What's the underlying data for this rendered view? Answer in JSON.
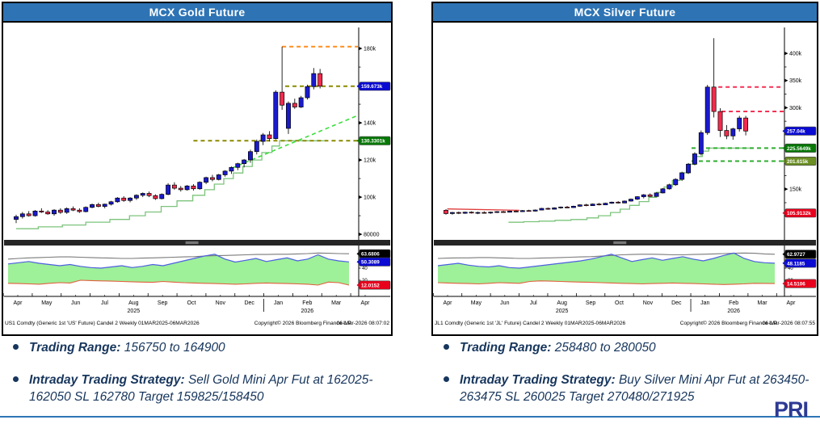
{
  "page": {
    "bullets": [
      {
        "label": "Trading Range:",
        "text": " 156750 to 164900"
      },
      {
        "label": "Intraday Trading Strategy:",
        "text": " Sell Gold Mini Apr Fut at 162025-162050 SL 162780 Target 159825/158450"
      },
      {
        "label": "Trading Range:",
        "text": " 258480 to 280050"
      },
      {
        "label": "Intraday Trading Strategy:",
        "text": " Buy Silver Mini Apr Fut at 263450-263475 SL 260025 Target 270480/271925"
      }
    ],
    "logo_text": "PRI",
    "divider_color": "#2e75b6",
    "bullet_text_color": "#17365d"
  },
  "colors": {
    "title_bg": "#2e74b5",
    "title_fg": "#ffffff",
    "up": "#1a1acd",
    "down": "#f42a4d",
    "wick": "#111111",
    "trail": "#7cc47c",
    "axis": "#000000",
    "ind_gray": "#7a7a7a",
    "ind_blue": "#4d5fe0",
    "ind_red": "#e2603f",
    "ind_fill": "#93ee8e",
    "separator": "#262626"
  },
  "chart_data": [
    {
      "type": "candlestick",
      "title": "MCX Gold Future",
      "y_unit": "thousands",
      "ylim": [
        78.3,
        183.5
      ],
      "ticks": [
        {
          "v": 180,
          "label": "180k"
        },
        {
          "v": 140,
          "label": "140k"
        },
        {
          "v": 120,
          "label": "120k"
        },
        {
          "v": 100,
          "label": "100k"
        },
        {
          "v": 80,
          "label": "80000"
        }
      ],
      "minor_ticks": [
        90,
        110,
        130,
        150,
        160,
        170
      ],
      "badges": [
        {
          "v": 159.673,
          "label": "159.673k",
          "bg": "#0a0ad2"
        },
        {
          "v": 130.3301,
          "label": "130.3301k",
          "bg": "#067806"
        }
      ],
      "candles": [
        [
          88,
          90.5,
          86,
          89.5
        ],
        [
          89.5,
          92,
          88.5,
          91
        ],
        [
          91,
          92.5,
          89.5,
          90
        ],
        [
          90,
          93,
          89.5,
          92.5
        ],
        [
          92.5,
          94,
          91.5,
          92
        ],
        [
          92,
          93,
          90.5,
          91
        ],
        [
          91,
          93.5,
          90,
          93
        ],
        [
          93,
          94,
          91,
          91.8
        ],
        [
          91.8,
          94.5,
          91,
          93.8
        ],
        [
          93.8,
          95,
          92.5,
          93
        ],
        [
          93,
          94,
          91.5,
          92.2
        ],
        [
          92.2,
          95,
          91.8,
          94.5
        ],
        [
          94.5,
          96.5,
          94,
          96
        ],
        [
          96,
          97,
          94.5,
          95
        ],
        [
          95,
          96.5,
          94,
          96.2
        ],
        [
          96.2,
          98,
          95.5,
          97.5
        ],
        [
          97.5,
          100,
          97,
          99.5
        ],
        [
          99.5,
          100.5,
          97.5,
          98.2
        ],
        [
          98.2,
          100,
          97.2,
          99.5
        ],
        [
          99.5,
          101.5,
          98.5,
          101
        ],
        [
          101,
          102.5,
          100,
          102
        ],
        [
          102,
          103,
          100,
          100.8
        ],
        [
          100.8,
          101.5,
          98.5,
          99.2
        ],
        [
          99.2,
          102,
          98.8,
          101.5
        ],
        [
          101.5,
          107.5,
          101,
          106.5
        ],
        [
          106.5,
          108,
          104,
          104.8
        ],
        [
          104.8,
          106,
          103,
          104
        ],
        [
          104,
          106.5,
          103.5,
          106
        ],
        [
          106,
          107,
          103.5,
          104.5
        ],
        [
          104.5,
          108.5,
          104,
          108
        ],
        [
          108,
          111,
          107,
          110.5
        ],
        [
          110.5,
          112,
          108.5,
          109.5
        ],
        [
          109.5,
          112.5,
          109,
          112
        ],
        [
          112,
          114.5,
          111,
          114
        ],
        [
          114,
          116.5,
          112.5,
          116
        ],
        [
          116,
          118.5,
          114.5,
          118
        ],
        [
          118,
          120.5,
          116,
          120
        ],
        [
          120,
          125.5,
          118.5,
          124.5
        ],
        [
          124.5,
          131,
          123,
          130
        ],
        [
          130,
          134.5,
          128,
          133.5
        ],
        [
          133.5,
          135.5,
          130,
          131.5
        ],
        [
          131.5,
          157.5,
          131,
          156.5
        ],
        [
          156.5,
          181,
          147,
          149.5
        ],
        [
          137,
          151.5,
          134,
          150.5
        ],
        [
          150.5,
          153,
          147.5,
          148.5
        ],
        [
          148.5,
          154.5,
          148,
          153.5
        ],
        [
          153.5,
          160.5,
          152.5,
          159.5
        ],
        [
          159.5,
          169.5,
          158,
          166.5
        ],
        [
          166.5,
          169,
          158.5,
          159.7
        ]
      ],
      "trail_stop": [
        [
          0,
          83
        ],
        [
          3.5,
          84
        ],
        [
          7.3,
          85
        ],
        [
          11,
          86.5
        ],
        [
          14.8,
          88
        ],
        [
          17.9,
          90
        ],
        [
          20.4,
          92
        ],
        [
          22.9,
          95
        ],
        [
          25.4,
          98
        ],
        [
          27.9,
          101
        ],
        [
          29.8,
          104
        ],
        [
          31.3,
          107
        ],
        [
          32.8,
          110
        ],
        [
          34.3,
          113
        ],
        [
          35.8,
          116.5
        ],
        [
          37.3,
          120
        ],
        [
          38.8,
          124
        ],
        [
          40.4,
          127.5
        ],
        [
          41.6,
          130.33
        ],
        [
          48.6,
          130.33
        ]
      ],
      "levels": [
        {
          "t": "h",
          "p": 181,
          "i1": 42,
          "c": "#ff8c1a",
          "name": "spike-high-line"
        },
        {
          "t": "h",
          "p": 159.7,
          "i1": 42.5,
          "c": "#8a8a00",
          "name": "close-level-line"
        },
        {
          "t": "h",
          "p": 130.33,
          "i1": 28,
          "c": "#8a8a00",
          "name": "stop-level-line"
        },
        {
          "t": "d",
          "i1": 34,
          "p1": 115.5,
          "p2": 144,
          "c": "#3ddd3d",
          "name": "trend-line"
        }
      ],
      "indicator": {
        "gray": [
          55,
          56,
          57,
          57.5,
          58,
          58.5,
          58.5,
          58,
          57.5,
          57,
          56.5,
          56,
          56,
          56.5,
          57,
          57.5,
          58,
          58.5,
          59,
          60,
          60.5,
          61,
          61.5,
          62,
          62.5,
          62.5,
          63,
          63,
          63.5,
          64,
          65,
          64.5,
          64,
          63.7
        ],
        "blue": [
          47,
          49,
          51,
          48,
          46,
          44,
          46,
          43,
          41,
          40,
          42,
          44,
          41,
          43,
          46,
          44,
          48,
          52,
          56,
          60,
          63,
          55,
          50,
          53,
          56,
          51,
          54,
          57,
          52,
          55,
          62,
          55,
          52,
          50.3
        ],
        "red": [
          15,
          14.5,
          14,
          13.5,
          15,
          16,
          15.5,
          20,
          19.5,
          19,
          18.5,
          18,
          17.5,
          17,
          16.5,
          18,
          17,
          16,
          15.5,
          15,
          14.5,
          14,
          13.5,
          14,
          15,
          15.5,
          15,
          14.5,
          14,
          13.5,
          12,
          17,
          16,
          12
        ],
        "ticks": [
          40,
          20
        ],
        "badges": [
          {
            "v": 63.6806,
            "label": "63.6806",
            "bg": "#000000"
          },
          {
            "v": 50.3089,
            "label": "50.3089",
            "bg": "#0a0ad2"
          },
          {
            "v": 12.0152,
            "label": "12.0152",
            "bg": "#e8001c"
          }
        ]
      },
      "months": [
        "Apr",
        "May",
        "Jun",
        "Jul",
        "Aug",
        "Sep",
        "Oct",
        "Nov",
        "Dec",
        "Jan",
        "Feb",
        "Mar",
        "Apr"
      ],
      "year_labels": [
        {
          "index": 4,
          "label": "2025"
        },
        {
          "index": 10,
          "label": "2026"
        }
      ],
      "footer": {
        "left": "US1 Comdty (Generic 1st 'US' Future) Candel 2 Weekly 01MAR2025-06MAR2026",
        "center": "Copyright© 2026 Bloomberg Finance L.P.",
        "right": "06-Mar-2026 08:07:02"
      }
    },
    {
      "type": "candlestick",
      "title": "MCX Silver Future",
      "y_unit": "thousands",
      "ylim": [
        61,
        421
      ],
      "ticks": [
        {
          "v": 400,
          "label": "400k"
        },
        {
          "v": 350,
          "label": "350k"
        },
        {
          "v": 300,
          "label": "300k"
        },
        {
          "v": 150,
          "label": "150k"
        }
      ],
      "minor_ticks": [
        100,
        125,
        175,
        200,
        225,
        250,
        275,
        325,
        375
      ],
      "badges": [
        {
          "v": 257.04,
          "label": "257.04k",
          "bg": "#0a0ad2"
        },
        {
          "v": 225.5649,
          "label": "225.5649k",
          "bg": "#067806"
        },
        {
          "v": 201.615,
          "label": "201.615k",
          "bg": "#6b8e23"
        },
        {
          "v": 105.9132,
          "label": "105.9132k",
          "bg": "#e8001c"
        }
      ],
      "candles": [
        [
          111,
          113,
          103,
          105
        ],
        [
          105,
          108,
          103,
          107
        ],
        [
          107,
          108.5,
          104,
          105.5
        ],
        [
          105.5,
          108.5,
          104.5,
          107.5
        ],
        [
          107.5,
          109,
          105,
          106
        ],
        [
          106,
          108.5,
          104,
          107
        ],
        [
          107,
          109,
          105,
          106
        ],
        [
          106,
          108.5,
          104.5,
          107.5
        ],
        [
          107.5,
          109.5,
          106,
          108.5
        ],
        [
          108.5,
          110,
          106.5,
          107.5
        ],
        [
          107.5,
          110.5,
          107,
          109.5
        ],
        [
          109.5,
          111,
          107.5,
          108.5
        ],
        [
          108.5,
          111.5,
          108,
          110.5
        ],
        [
          110.5,
          112,
          108.5,
          109.5
        ],
        [
          109.5,
          112.5,
          109,
          111.5
        ],
        [
          111.5,
          115.5,
          111,
          114.5
        ],
        [
          114.5,
          116,
          112,
          113
        ],
        [
          113,
          116.5,
          112.5,
          115.5
        ],
        [
          115.5,
          118,
          114,
          117
        ],
        [
          117,
          119,
          115,
          116
        ],
        [
          116,
          119.5,
          115.5,
          118.5
        ],
        [
          118.5,
          122,
          117.5,
          121
        ],
        [
          121,
          123,
          118.5,
          119.5
        ],
        [
          119.5,
          123.5,
          119,
          122.5
        ],
        [
          122.5,
          124.5,
          120,
          121
        ],
        [
          121,
          125,
          120.5,
          124
        ],
        [
          124,
          127,
          123,
          126
        ],
        [
          126,
          128,
          123.5,
          124.5
        ],
        [
          124.5,
          129,
          124,
          128
        ],
        [
          128,
          132.5,
          127,
          131.5
        ],
        [
          131.5,
          137,
          130,
          136
        ],
        [
          136,
          141,
          133,
          139.5
        ],
        [
          139.5,
          142,
          135.5,
          136.5
        ],
        [
          136.5,
          144,
          136,
          143
        ],
        [
          143,
          152,
          142,
          150.5
        ],
        [
          150.5,
          160,
          149,
          158
        ],
        [
          158,
          170,
          156,
          168
        ],
        [
          168,
          182,
          165,
          180
        ],
        [
          180,
          198,
          178,
          196
        ],
        [
          196,
          218,
          194,
          215
        ],
        [
          215,
          258,
          212,
          254
        ],
        [
          254,
          342,
          250,
          338
        ],
        [
          338,
          428,
          282,
          293
        ],
        [
          293,
          299,
          246,
          258
        ],
        [
          258,
          268,
          242,
          248
        ],
        [
          248,
          263,
          241,
          261
        ],
        [
          261,
          285,
          256,
          281
        ],
        [
          281,
          285,
          249,
          257.04
        ]
      ],
      "trail_stop": [
        [
          9.8,
          89
        ],
        [
          12.2,
          90
        ],
        [
          14.6,
          91
        ],
        [
          17.1,
          92.5
        ],
        [
          19.6,
          94
        ],
        [
          22.1,
          97
        ],
        [
          23.9,
          101
        ],
        [
          25.8,
          107
        ],
        [
          27.3,
          113
        ],
        [
          28.8,
          120
        ],
        [
          30.3,
          127
        ],
        [
          31.8,
          135
        ],
        [
          33,
          144
        ],
        [
          34.2,
          154
        ],
        [
          35.5,
          166
        ],
        [
          36.7,
          180
        ],
        [
          38,
          196
        ],
        [
          39.2,
          210
        ],
        [
          40.2,
          220
        ],
        [
          41.2,
          225.56
        ],
        [
          47.6,
          225.56
        ]
      ],
      "levels": [
        {
          "t": "h",
          "p": 338,
          "i1": 42.7,
          "c": "#f43054",
          "name": "resistance-line-1"
        },
        {
          "t": "h",
          "p": 293,
          "i1": 43.2,
          "c": "#f43054",
          "name": "resistance-line-2"
        },
        {
          "t": "h",
          "p": 225.564,
          "i1": 38.5,
          "c": "#2fae2f",
          "name": "support-line-1"
        },
        {
          "t": "h",
          "p": 201.615,
          "i1": 38.5,
          "c": "#2fae2f",
          "name": "support-line-2"
        },
        {
          "t": "s",
          "i1": 0.2,
          "p1": 113.5,
          "i2": 11.5,
          "p2": 111,
          "c": "#e03a3a",
          "name": "flat-average-line"
        }
      ],
      "indicator": {
        "gray": [
          56,
          56.5,
          57,
          57,
          57.5,
          57.5,
          57,
          56.5,
          56,
          56,
          56.5,
          57,
          57.5,
          58,
          58.5,
          59,
          60,
          61,
          62,
          62.5,
          63,
          63,
          62.5,
          62,
          62,
          62.5,
          63,
          63.5,
          64,
          64.5,
          65,
          64.5,
          63.5,
          63
        ],
        "blue": [
          44,
          46,
          48,
          45,
          43,
          42,
          44,
          41,
          40,
          42,
          44,
          46,
          48,
          50,
          52,
          55,
          59,
          63,
          57,
          51,
          54,
          57,
          53,
          56,
          59,
          55,
          52,
          56,
          61,
          65,
          56,
          51,
          49,
          48.1
        ],
        "red": [
          16,
          15.5,
          15,
          14.5,
          14,
          15,
          16,
          15.5,
          15,
          18,
          19,
          18.5,
          18,
          17.5,
          17,
          16.5,
          16,
          15.5,
          15,
          14.5,
          14,
          14.5,
          15,
          15.5,
          15,
          14.5,
          14,
          13.5,
          13,
          13.5,
          14,
          15,
          14.8,
          14.5
        ],
        "ticks": [
          40,
          20
        ],
        "badges": [
          {
            "v": 62.9727,
            "label": "62.9727",
            "bg": "#000000"
          },
          {
            "v": 48.1185,
            "label": "48.1185",
            "bg": "#0a0ad2"
          },
          {
            "v": 14.5106,
            "label": "14.5106",
            "bg": "#e8001c"
          }
        ]
      },
      "months": [
        "Apr",
        "May",
        "Jun",
        "Jul",
        "Aug",
        "Sep",
        "Oct",
        "Nov",
        "Dec",
        "Jan",
        "Feb",
        "Mar",
        "Apr"
      ],
      "year_labels": [
        {
          "index": 4,
          "label": "2025"
        },
        {
          "index": 10,
          "label": "2026"
        }
      ],
      "footer": {
        "left": "JL1 Comdty (Generic 1st 'JL' Future) Candel 2 Weekly 01MAR2025-06MAR2026",
        "center": "Copyright© 2026 Bloomberg Finance L.P.",
        "right": "06-Mar-2026 08:07:55"
      }
    }
  ]
}
